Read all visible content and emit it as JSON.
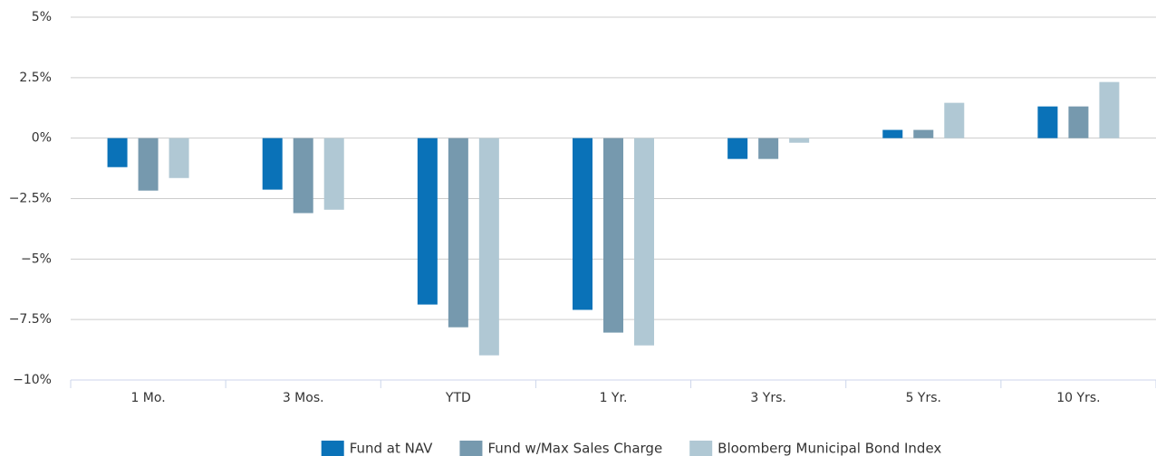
{
  "chart_data": {
    "type": "bar",
    "categories": [
      "1 Mo.",
      "3 Mos.",
      "YTD",
      "1 Yr.",
      "3 Yrs.",
      "5 Yrs.",
      "10 Yrs."
    ],
    "series": [
      {
        "name": "Fund at NAV",
        "color": "#0a72b8",
        "values": [
          -1.2,
          -2.13,
          -6.88,
          -7.1,
          -0.86,
          0.34,
          1.31
        ]
      },
      {
        "name": "Fund w/Max Sales Charge",
        "color": "#7699ae",
        "values": [
          -2.17,
          -3.1,
          -7.82,
          -8.04,
          -0.86,
          0.34,
          1.31
        ]
      },
      {
        "name": "Bloomberg Municipal Bond Index",
        "color": "#b0c8d4",
        "values": [
          -1.65,
          -2.96,
          -8.98,
          -8.57,
          -0.19,
          1.46,
          2.32
        ]
      }
    ],
    "ylim": [
      -10,
      5
    ],
    "yticks": [
      {
        "value": -10,
        "label": "−10%"
      },
      {
        "value": -7.5,
        "label": "−7.5%"
      },
      {
        "value": -5,
        "label": "−5%"
      },
      {
        "value": -2.5,
        "label": "−2.5%"
      },
      {
        "value": 0,
        "label": "0%"
      },
      {
        "value": 2.5,
        "label": "2.5%"
      },
      {
        "value": 5,
        "label": "5%"
      }
    ],
    "grid": true,
    "legend": "bottom"
  }
}
